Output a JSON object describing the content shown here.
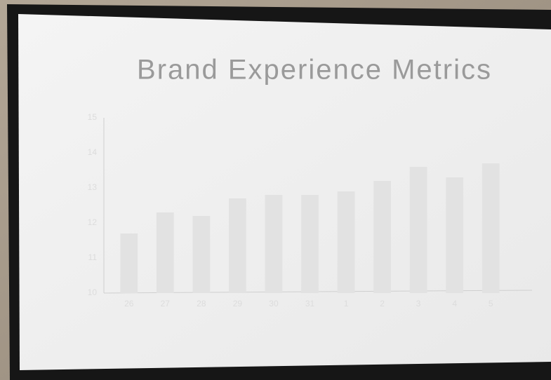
{
  "chart_data": {
    "type": "bar",
    "title": "Brand Experience Metrics",
    "categories": [
      "26",
      "27",
      "28",
      "29",
      "30",
      "31",
      "1",
      "2",
      "3",
      "4",
      "5"
    ],
    "values": [
      11.7,
      12.3,
      12.2,
      12.7,
      12.8,
      12.8,
      12.9,
      13.2,
      13.6,
      13.3,
      13.7
    ],
    "color": "#e2e2e2",
    "ylim": [
      10,
      15
    ],
    "yticks": [
      10,
      11,
      12,
      13,
      14,
      15
    ],
    "grid": false
  }
}
